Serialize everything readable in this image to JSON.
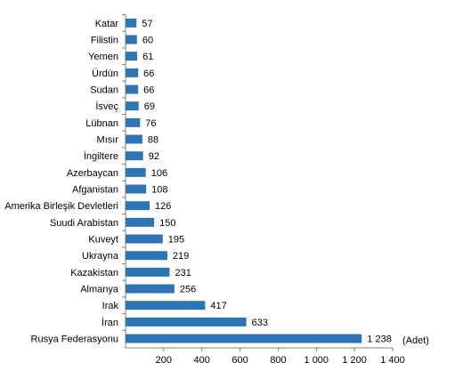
{
  "chart_data": {
    "type": "bar",
    "orientation": "horizontal",
    "categories": [
      "Katar",
      "Filistin",
      "Yemen",
      "Ürdün",
      "Sudan",
      "İsveç",
      "Lübnan",
      "Mısır",
      "İngiltere",
      "Azerbaycan",
      "Afganistan",
      "Amerika Birleşik Devletleri",
      "Suudi Arabistan",
      "Kuveyt",
      "Ukrayna",
      "Kazakistan",
      "Almanya",
      "Irak",
      "İran",
      "Rusya Federasyonu"
    ],
    "values": [
      57,
      60,
      61,
      66,
      66,
      69,
      76,
      88,
      92,
      106,
      108,
      126,
      150,
      195,
      219,
      231,
      256,
      417,
      633,
      1238
    ],
    "value_labels": [
      "57",
      "60",
      "61",
      "66",
      "66",
      "69",
      "76",
      "88",
      "92",
      "106",
      "108",
      "126",
      "150",
      "195",
      "219",
      "231",
      "256",
      "417",
      "633",
      "1 238"
    ],
    "xlim": [
      0,
      1400
    ],
    "xticks": [
      200,
      400,
      600,
      800,
      1000,
      1200,
      1400
    ],
    "xtick_labels": [
      "200",
      "400",
      "600",
      "800",
      "1 000",
      "1 200",
      "1 400"
    ],
    "unit_label": "(Adet)",
    "bar_color": "#2e75b6",
    "grid": false
  }
}
